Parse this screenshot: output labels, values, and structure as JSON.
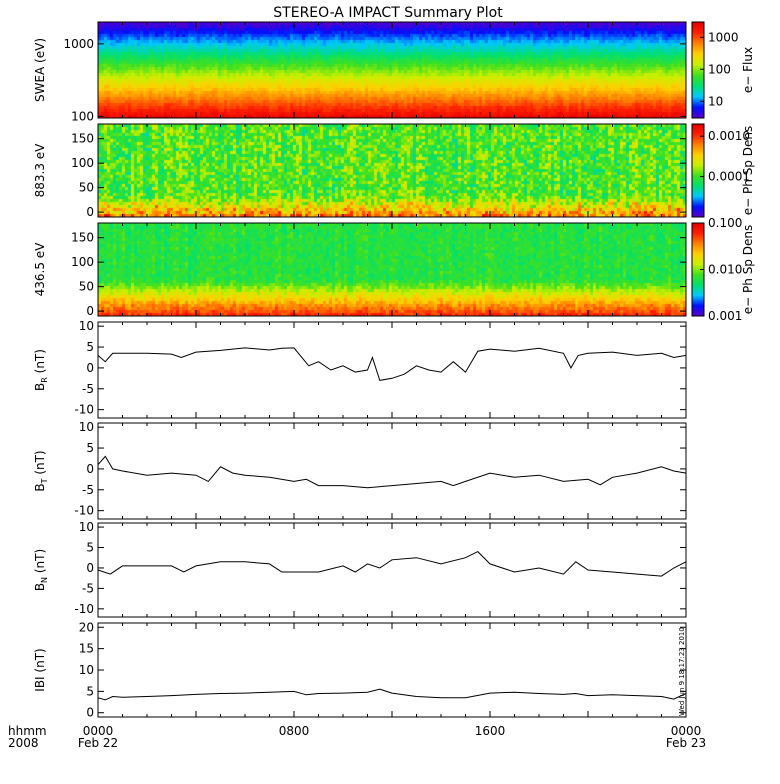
{
  "title": "STEREO-A IMPACT Summary Plot",
  "stamp": "Wed Jun  9 18:17:23 2010",
  "time_axis": {
    "corner_labels": [
      "hhmm",
      "2008"
    ],
    "ticks": [
      {
        "hhmm": "0000",
        "date": "Feb 22",
        "hour": 0
      },
      {
        "hhmm": "0800",
        "date": "",
        "hour": 8
      },
      {
        "hhmm": "1600",
        "date": "",
        "hour": 16
      },
      {
        "hhmm": "0000",
        "date": "Feb 23",
        "hour": 24
      }
    ],
    "range_hours": [
      0,
      24
    ]
  },
  "colors": {
    "trace": "#000000",
    "colormap": [
      "#5a00c8",
      "#0010ff",
      "#00c8ff",
      "#00e070",
      "#40e020",
      "#c8f000",
      "#ffd000",
      "#ff8000",
      "#ff2000",
      "#e00000"
    ]
  },
  "chart_data": [
    {
      "type": "heatmap",
      "id": "swea",
      "ylabel": "SWEA (eV)",
      "ylog": true,
      "ylim": [
        95,
        2000
      ],
      "yticks": [
        {
          "v": 100,
          "t": "100"
        },
        {
          "v": 1000,
          "t": "1000"
        }
      ],
      "colorbar": {
        "label": "e− Flux",
        "log": true,
        "range": [
          3,
          3000
        ],
        "ticks": [
          {
            "v": 10,
            "t": "10"
          },
          {
            "v": 100,
            "t": "100"
          },
          {
            "v": 1000,
            "t": "1000"
          }
        ]
      }
    },
    {
      "type": "heatmap",
      "id": "pad883",
      "ylabel": "883.3 eV",
      "ylim": [
        -10,
        180
      ],
      "yticks": [
        {
          "v": 0,
          "t": "0"
        },
        {
          "v": 50,
          "t": "50"
        },
        {
          "v": 100,
          "t": "100"
        },
        {
          "v": 150,
          "t": "150"
        }
      ],
      "colorbar": {
        "label": "e− Ph Sp Dens",
        "log": true,
        "range": [
          1e-05,
          0.002
        ],
        "ticks": [
          {
            "v": 0.0001,
            "t": "0.0001"
          },
          {
            "v": 0.001,
            "t": "0.0010"
          }
        ]
      }
    },
    {
      "type": "heatmap",
      "id": "pad436",
      "ylabel": "436.5 eV",
      "ylim": [
        -10,
        180
      ],
      "yticks": [
        {
          "v": 0,
          "t": "0"
        },
        {
          "v": 50,
          "t": "50"
        },
        {
          "v": 100,
          "t": "100"
        },
        {
          "v": 150,
          "t": "150"
        }
      ],
      "colorbar": {
        "label": "e− Ph Sp Dens",
        "log": true,
        "range": [
          0.001,
          0.1
        ],
        "ticks": [
          {
            "v": 0.001,
            "t": "0.001"
          },
          {
            "v": 0.01,
            "t": "0.010"
          },
          {
            "v": 0.1,
            "t": "0.100"
          }
        ]
      }
    },
    {
      "type": "line",
      "id": "br",
      "ylabel": "B",
      "ylabel_sub": "R",
      "ylabel_unit": "(nT)",
      "ylim": [
        -12,
        11
      ],
      "yticks": [
        -10,
        -5,
        0,
        5,
        10
      ],
      "x": [
        0,
        0.3,
        0.6,
        1,
        2,
        3,
        3.4,
        4,
        5,
        6,
        7,
        7.5,
        8,
        8.6,
        9,
        9.5,
        10,
        10.5,
        11,
        11.2,
        11.5,
        12,
        12.5,
        13,
        13.5,
        14,
        14.5,
        15,
        15.5,
        16,
        17,
        18,
        19,
        19.3,
        19.6,
        20,
        21,
        22,
        23,
        23.5,
        24
      ],
      "y": [
        3,
        1.5,
        3.5,
        3.5,
        3.5,
        3.3,
        2.5,
        3.8,
        4.2,
        4.8,
        4.3,
        4.7,
        4.8,
        0.5,
        1.5,
        -0.5,
        0.5,
        -1.0,
        -0.5,
        2.5,
        -3.0,
        -2.5,
        -1.5,
        0.5,
        -0.5,
        -1.0,
        1.5,
        -1.0,
        4.0,
        4.5,
        4.0,
        4.7,
        3.5,
        0.0,
        3.0,
        3.5,
        3.8,
        3.0,
        3.5,
        2.5,
        3.0
      ]
    },
    {
      "type": "line",
      "id": "bt",
      "ylabel": "B",
      "ylabel_sub": "T",
      "ylabel_unit": "(nT)",
      "ylim": [
        -12,
        11
      ],
      "yticks": [
        -10,
        -5,
        0,
        5,
        10
      ],
      "x": [
        0,
        0.3,
        0.6,
        1,
        2,
        3,
        4,
        4.5,
        5,
        5.5,
        6,
        7,
        8,
        8.5,
        9,
        10,
        11,
        12,
        13,
        14,
        14.5,
        15,
        16,
        17,
        18,
        19,
        20,
        20.5,
        21,
        22,
        23,
        23.5,
        24
      ],
      "y": [
        1,
        3,
        0,
        -0.5,
        -1.5,
        -1.0,
        -1.5,
        -3.0,
        0.5,
        -1.0,
        -1.5,
        -2.0,
        -3.0,
        -2.5,
        -4.0,
        -4.0,
        -4.5,
        -4.0,
        -3.5,
        -3.0,
        -4.0,
        -3.0,
        -1.0,
        -2.0,
        -1.5,
        -3.0,
        -2.5,
        -3.8,
        -2.0,
        -1.0,
        0.5,
        -0.5,
        -1.0
      ]
    },
    {
      "type": "line",
      "id": "bn",
      "ylabel": "B",
      "ylabel_sub": "N",
      "ylabel_unit": "(nT)",
      "ylim": [
        -12,
        11
      ],
      "yticks": [
        -10,
        -5,
        0,
        5,
        10
      ],
      "x": [
        0,
        0.5,
        1,
        2,
        3,
        3.5,
        4,
        5,
        6,
        7,
        7.5,
        8,
        9,
        10,
        10.5,
        11,
        11.5,
        12,
        13,
        14,
        15,
        15.5,
        16,
        17,
        18,
        19,
        19.5,
        20,
        21,
        22,
        23,
        23.5,
        24
      ],
      "y": [
        -0.5,
        -1.5,
        0.5,
        0.5,
        0.5,
        -1.0,
        0.5,
        1.5,
        1.5,
        1.0,
        -1.0,
        -1.0,
        -1.0,
        0.5,
        -1.0,
        1.0,
        0.0,
        2.0,
        2.5,
        1.0,
        2.5,
        4.0,
        1.0,
        -1.0,
        0.0,
        -1.5,
        1.5,
        -0.5,
        -1.0,
        -1.5,
        -2.0,
        0.0,
        1.5
      ]
    },
    {
      "type": "line",
      "id": "bmag",
      "ylabel": "IBI",
      "ylabel_unit": "(nT)",
      "ylim": [
        -1,
        21
      ],
      "yticks": [
        0,
        5,
        10,
        15,
        20
      ],
      "x": [
        0,
        0.3,
        0.6,
        1,
        2,
        3,
        4,
        5,
        6,
        7,
        8,
        8.5,
        9,
        10,
        11,
        11.5,
        12,
        13,
        14,
        15,
        16,
        17,
        18,
        19,
        19.5,
        20,
        21,
        22,
        23,
        23.5,
        24
      ],
      "y": [
        3.5,
        3.0,
        3.8,
        3.6,
        3.8,
        4.0,
        4.3,
        4.5,
        4.6,
        4.8,
        5.0,
        4.2,
        4.5,
        4.6,
        4.8,
        5.5,
        4.6,
        3.8,
        3.5,
        3.5,
        4.6,
        4.8,
        4.5,
        4.3,
        4.5,
        4.0,
        4.2,
        4.0,
        3.8,
        3.2,
        4.5
      ]
    }
  ]
}
